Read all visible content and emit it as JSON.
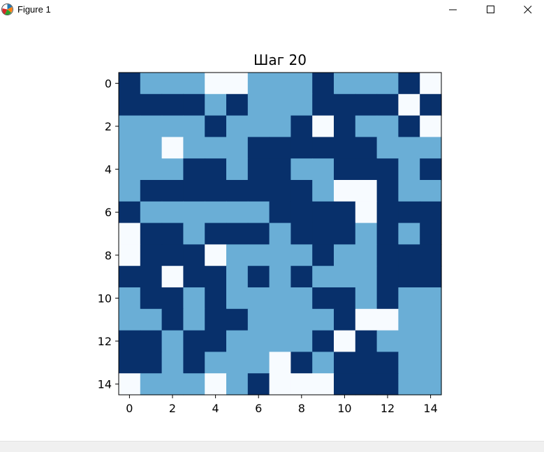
{
  "window": {
    "title": "Figure 1",
    "icon": "matplotlib-logo-icon",
    "controls": [
      "minimize-icon",
      "maximize-icon",
      "close-icon"
    ]
  },
  "toolbar": {
    "tools": [
      "home-icon",
      "back-icon",
      "forward-icon",
      "pan-icon",
      "zoom-icon",
      "configure-icon",
      "save-icon"
    ]
  },
  "chart_data": {
    "type": "heatmap",
    "title": "Шаг 20",
    "xlabel": "",
    "ylabel": "",
    "x_ticks": [
      "0",
      "2",
      "4",
      "6",
      "8",
      "10",
      "12",
      "14"
    ],
    "y_ticks": [
      "0",
      "2",
      "4",
      "6",
      "8",
      "10",
      "12",
      "14"
    ],
    "xlim": [
      -0.5,
      14.5
    ],
    "ylim": [
      14.5,
      -0.5
    ],
    "grid": false,
    "legend": "none",
    "colormap": "Blues",
    "level_colors": [
      "#f7fbff",
      "#6aaed6",
      "#08306b"
    ],
    "values": [
      [
        2,
        1,
        1,
        1,
        0,
        0,
        1,
        1,
        1,
        2,
        1,
        1,
        1,
        2,
        0
      ],
      [
        2,
        2,
        2,
        2,
        1,
        2,
        1,
        1,
        1,
        2,
        2,
        2,
        2,
        0,
        2
      ],
      [
        1,
        1,
        1,
        1,
        2,
        1,
        1,
        1,
        2,
        0,
        2,
        1,
        1,
        2,
        0
      ],
      [
        1,
        1,
        0,
        1,
        1,
        1,
        2,
        2,
        2,
        2,
        2,
        2,
        1,
        1,
        1
      ],
      [
        1,
        1,
        1,
        2,
        2,
        1,
        2,
        2,
        1,
        1,
        2,
        2,
        2,
        1,
        2
      ],
      [
        1,
        2,
        2,
        2,
        2,
        2,
        2,
        2,
        2,
        1,
        0,
        0,
        2,
        1,
        1
      ],
      [
        2,
        1,
        1,
        1,
        1,
        1,
        1,
        2,
        2,
        2,
        2,
        0,
        2,
        2,
        2
      ],
      [
        0,
        2,
        2,
        1,
        2,
        2,
        2,
        1,
        2,
        2,
        2,
        1,
        2,
        1,
        2
      ],
      [
        0,
        2,
        2,
        2,
        0,
        1,
        1,
        1,
        1,
        2,
        1,
        1,
        2,
        2,
        2
      ],
      [
        2,
        2,
        0,
        2,
        2,
        1,
        2,
        1,
        2,
        1,
        1,
        1,
        2,
        2,
        2
      ],
      [
        1,
        2,
        2,
        1,
        2,
        1,
        1,
        1,
        1,
        2,
        2,
        1,
        2,
        1,
        1
      ],
      [
        1,
        1,
        2,
        1,
        2,
        2,
        1,
        1,
        1,
        1,
        2,
        0,
        0,
        1,
        1
      ],
      [
        2,
        2,
        1,
        2,
        2,
        1,
        1,
        1,
        1,
        2,
        0,
        2,
        1,
        1,
        1
      ],
      [
        2,
        2,
        1,
        2,
        1,
        1,
        1,
        0,
        2,
        1,
        2,
        2,
        2,
        1,
        1
      ],
      [
        0,
        1,
        1,
        1,
        0,
        1,
        2,
        0,
        0,
        0,
        2,
        2,
        2,
        1,
        1
      ]
    ]
  }
}
